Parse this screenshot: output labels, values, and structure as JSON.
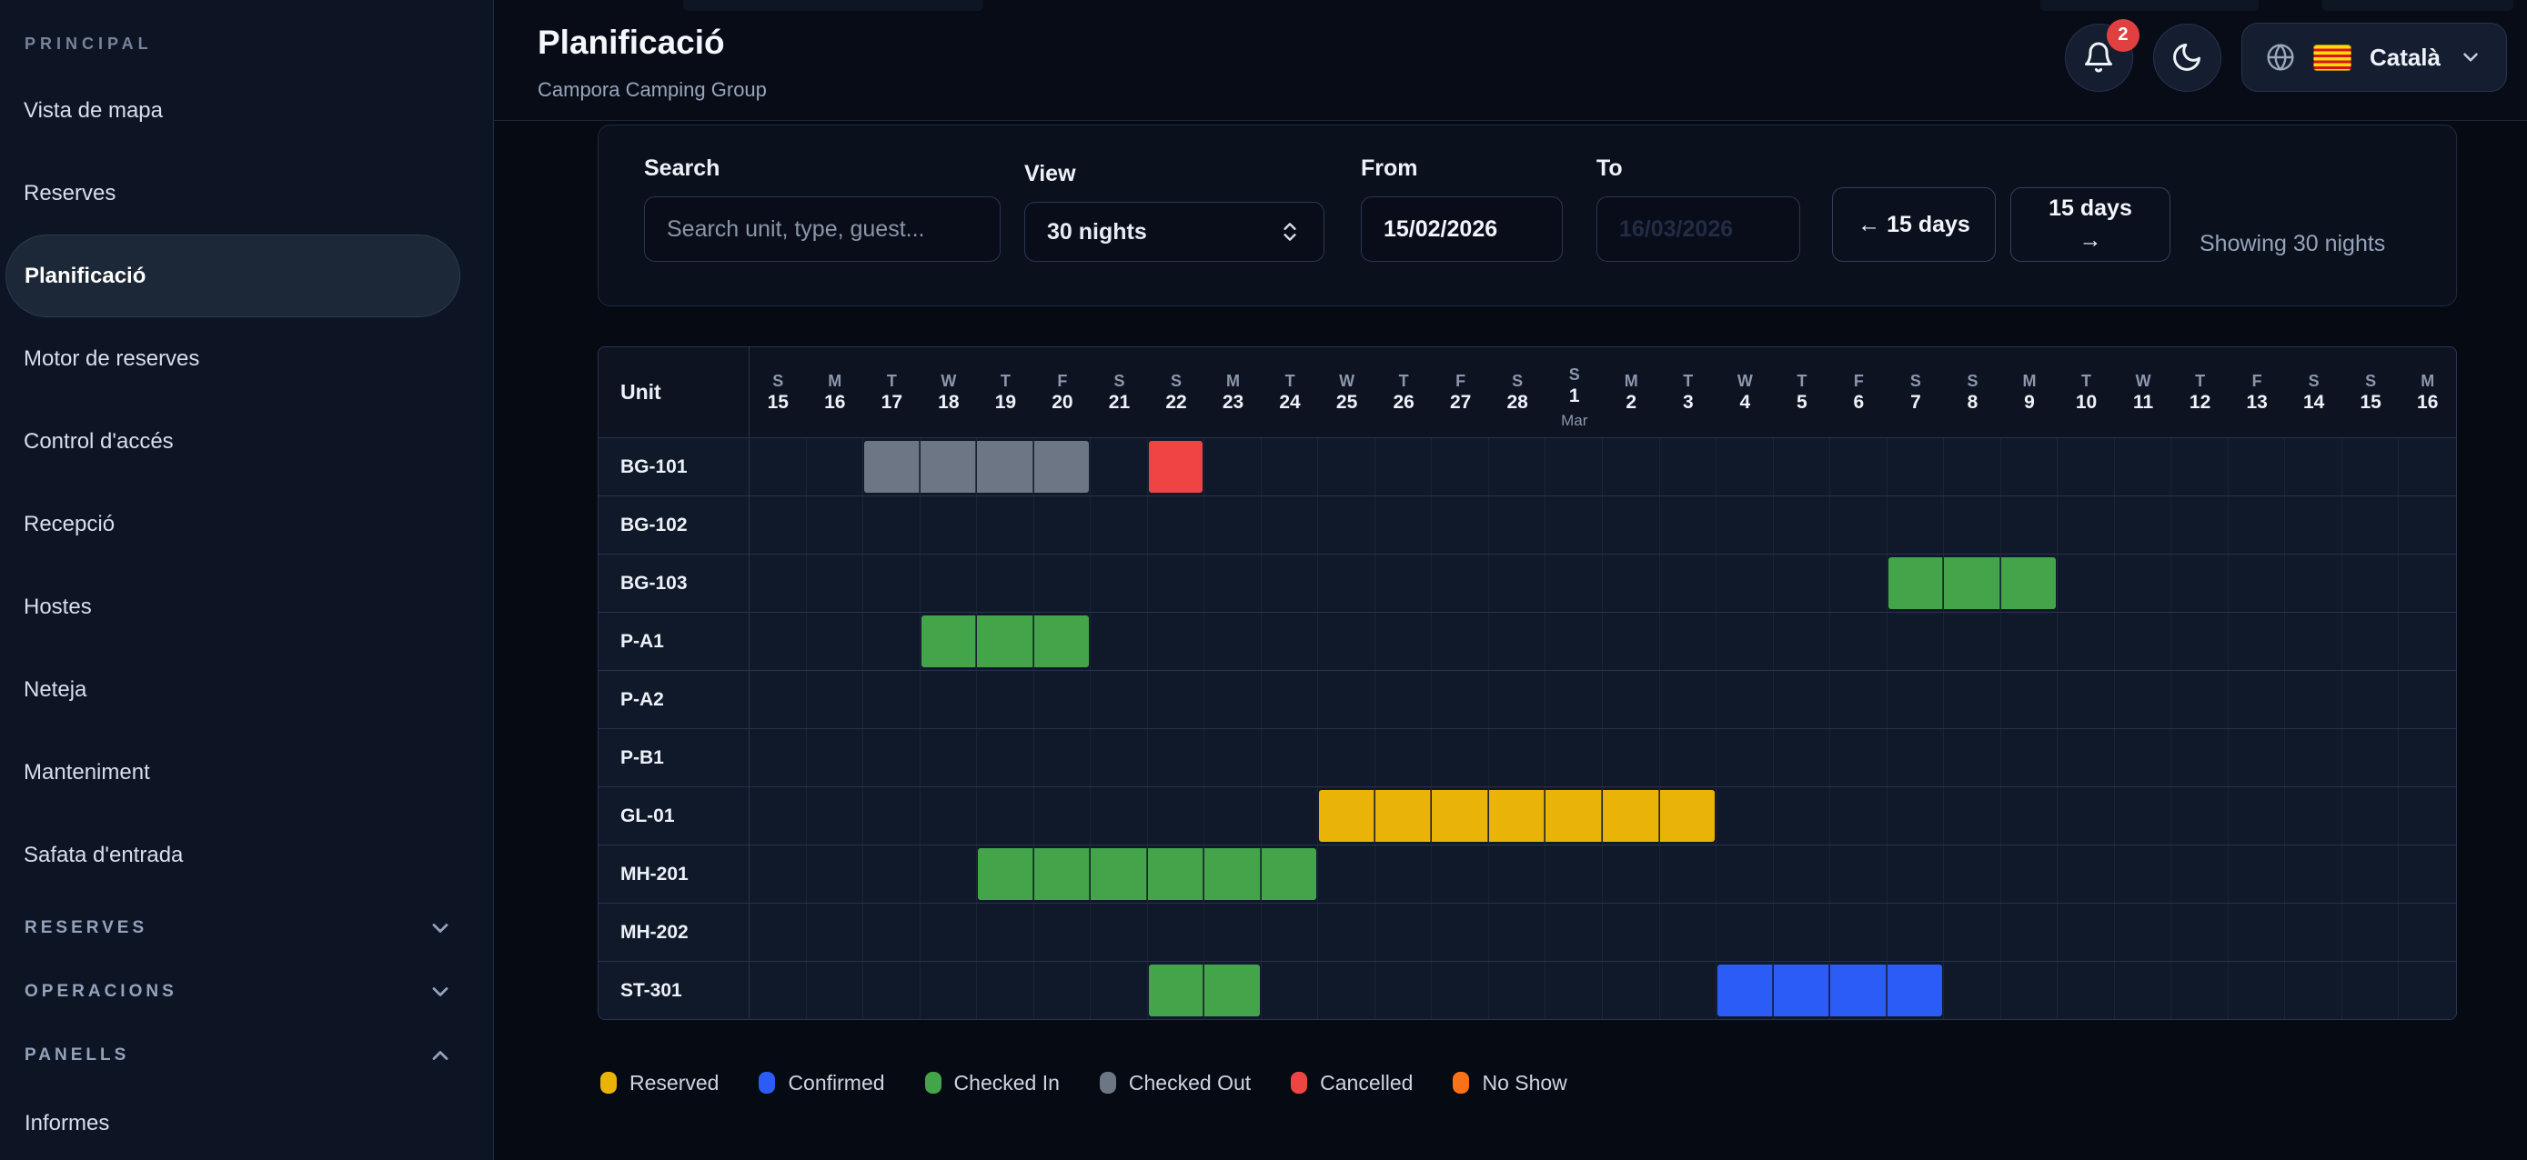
{
  "sidebar": {
    "section_label": "PRINCIPAL",
    "items": [
      {
        "label": "Vista de mapa",
        "active": false
      },
      {
        "label": "Reserves",
        "active": false
      },
      {
        "label": "Planificació",
        "active": true
      },
      {
        "label": "Motor de reserves",
        "active": false
      },
      {
        "label": "Control d'accés",
        "active": false
      },
      {
        "label": "Recepció",
        "active": false
      },
      {
        "label": "Hostes",
        "active": false
      },
      {
        "label": "Neteja",
        "active": false
      },
      {
        "label": "Manteniment",
        "active": false
      },
      {
        "label": "Safata d'entrada",
        "active": false
      }
    ],
    "groups": [
      {
        "label": "RESERVES",
        "expanded": false
      },
      {
        "label": "OPERACIONS",
        "expanded": false
      },
      {
        "label": "PANELLS",
        "expanded": true
      }
    ],
    "footer_items": [
      {
        "label": "Informes"
      }
    ]
  },
  "header": {
    "title": "Planificació",
    "subtitle": "Campora Camping Group",
    "notification_count": "2",
    "language_label": "Català"
  },
  "filters": {
    "search_label": "Search",
    "search_placeholder": "Search unit, type, guest...",
    "view_label": "View",
    "view_value": "30 nights",
    "from_label": "From",
    "from_value": "15/02/2026",
    "to_label": "To",
    "to_placeholder": "16/03/2026",
    "prev_button": "← 15 days",
    "next_button": "15 days →",
    "showing_text": "Showing 30 nights"
  },
  "planner": {
    "unit_column_label": "Unit",
    "days": [
      {
        "dow": "S",
        "num": "15"
      },
      {
        "dow": "M",
        "num": "16"
      },
      {
        "dow": "T",
        "num": "17"
      },
      {
        "dow": "W",
        "num": "18"
      },
      {
        "dow": "T",
        "num": "19"
      },
      {
        "dow": "F",
        "num": "20"
      },
      {
        "dow": "S",
        "num": "21"
      },
      {
        "dow": "S",
        "num": "22"
      },
      {
        "dow": "M",
        "num": "23"
      },
      {
        "dow": "T",
        "num": "24"
      },
      {
        "dow": "W",
        "num": "25"
      },
      {
        "dow": "T",
        "num": "26"
      },
      {
        "dow": "F",
        "num": "27"
      },
      {
        "dow": "S",
        "num": "28"
      },
      {
        "dow": "S",
        "num": "1",
        "month": "Mar"
      },
      {
        "dow": "M",
        "num": "2"
      },
      {
        "dow": "T",
        "num": "3"
      },
      {
        "dow": "W",
        "num": "4"
      },
      {
        "dow": "T",
        "num": "5"
      },
      {
        "dow": "F",
        "num": "6"
      },
      {
        "dow": "S",
        "num": "7"
      },
      {
        "dow": "S",
        "num": "8"
      },
      {
        "dow": "M",
        "num": "9"
      },
      {
        "dow": "T",
        "num": "10"
      },
      {
        "dow": "W",
        "num": "11"
      },
      {
        "dow": "T",
        "num": "12"
      },
      {
        "dow": "F",
        "num": "13"
      },
      {
        "dow": "S",
        "num": "14"
      },
      {
        "dow": "S",
        "num": "15"
      },
      {
        "dow": "M",
        "num": "16"
      }
    ],
    "rows": [
      {
        "unit": "BG-101",
        "bars": [
          {
            "start": 2,
            "length": 4,
            "status": "checked_out"
          },
          {
            "start": 7,
            "length": 1,
            "status": "cancelled"
          }
        ]
      },
      {
        "unit": "BG-102",
        "bars": []
      },
      {
        "unit": "BG-103",
        "bars": [
          {
            "start": 20,
            "length": 3,
            "status": "checked_in"
          }
        ]
      },
      {
        "unit": "P-A1",
        "bars": [
          {
            "start": 3,
            "length": 3,
            "status": "checked_in"
          }
        ]
      },
      {
        "unit": "P-A2",
        "bars": []
      },
      {
        "unit": "P-B1",
        "bars": []
      },
      {
        "unit": "GL-01",
        "bars": [
          {
            "start": 10,
            "length": 7,
            "status": "reserved"
          }
        ]
      },
      {
        "unit": "MH-201",
        "bars": [
          {
            "start": 4,
            "length": 6,
            "status": "checked_in"
          }
        ]
      },
      {
        "unit": "MH-202",
        "bars": []
      },
      {
        "unit": "ST-301",
        "bars": [
          {
            "start": 7,
            "length": 2,
            "status": "checked_in"
          },
          {
            "start": 17,
            "length": 4,
            "status": "confirmed"
          }
        ]
      }
    ],
    "status_colors": {
      "reserved": "#eab308",
      "confirmed": "#2b5cf6",
      "checked_in": "#43a44a",
      "checked_out": "#6d7685",
      "cancelled": "#ef4444",
      "no_show": "#f97316"
    }
  },
  "legend": [
    {
      "label": "Reserved",
      "status": "reserved"
    },
    {
      "label": "Confirmed",
      "status": "confirmed"
    },
    {
      "label": "Checked In",
      "status": "checked_in"
    },
    {
      "label": "Checked Out",
      "status": "checked_out"
    },
    {
      "label": "Cancelled",
      "status": "cancelled"
    },
    {
      "label": "No Show",
      "status": "no_show"
    }
  ]
}
